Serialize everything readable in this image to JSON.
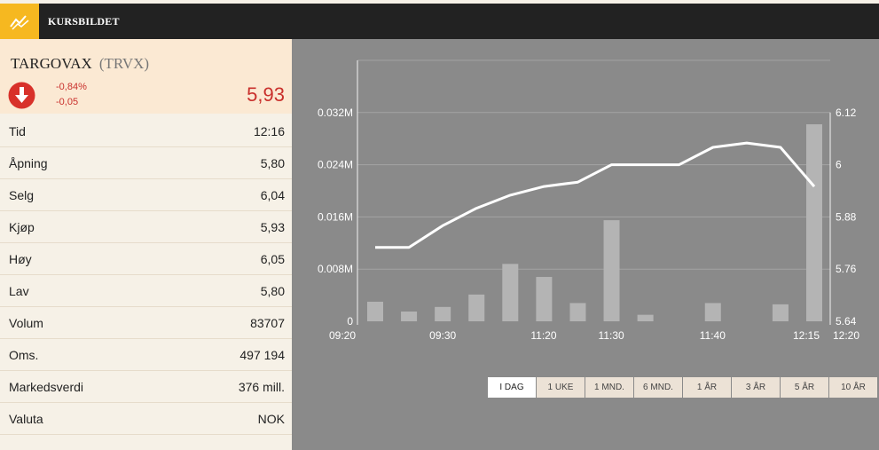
{
  "header": {
    "title": "KURSBILDET",
    "icon": "chart-line-icon"
  },
  "stock": {
    "name": "TARGOVAX",
    "ticker": "(TRVX)",
    "change_pct": "-0,84%",
    "change_abs": "-0,05",
    "price": "5,93",
    "direction_icon": "arrow-down-icon"
  },
  "rows": [
    {
      "label": "Tid",
      "value": "12:16"
    },
    {
      "label": "Åpning",
      "value": "5,80"
    },
    {
      "label": "Selg",
      "value": "6,04"
    },
    {
      "label": "Kjøp",
      "value": "5,93"
    },
    {
      "label": "Høy",
      "value": "6,05"
    },
    {
      "label": "Lav",
      "value": "5,80"
    },
    {
      "label": "Volum",
      "value": "83707"
    },
    {
      "label": "Oms.",
      "value": "497 194"
    },
    {
      "label": "Markedsverdi",
      "value": "376 mill."
    },
    {
      "label": "Valuta",
      "value": "NOK"
    }
  ],
  "tabs": [
    "I DAG",
    "1 UKE",
    "1 MND.",
    "6 MND.",
    "1 ÅR",
    "3 ÅR",
    "5 ÅR",
    "10 ÅR"
  ],
  "active_tab": 0,
  "colors": {
    "accent": "#f6b820",
    "negative": "#c9302c",
    "chart_bg": "#8a8a8a"
  },
  "chart_data": {
    "type": "bar+line",
    "x_ticks": [
      "09:20",
      "09:30",
      "11:20",
      "11:30",
      "11:40",
      "12:15",
      "12:20"
    ],
    "y_left_ticks": [
      "0",
      "0.008M",
      "0.016M",
      "0.024M",
      "0.032M"
    ],
    "y_right_ticks": [
      "5.64",
      "5.76",
      "5.88",
      "6",
      "6.12"
    ],
    "y_left_range": [
      0,
      0.04
    ],
    "y_right_range": [
      5.64,
      6.24
    ],
    "volume": [
      0.003,
      0.0015,
      0.0022,
      0.0041,
      0.0088,
      0.0068,
      0.0028,
      0.0155,
      0.001,
      0,
      0.0028,
      0,
      0.0026,
      0.0302
    ],
    "price": [
      5.81,
      5.81,
      5.86,
      5.9,
      5.93,
      5.95,
      5.96,
      6.0,
      6.0,
      6.0,
      6.04,
      6.05,
      6.04,
      5.95
    ]
  }
}
